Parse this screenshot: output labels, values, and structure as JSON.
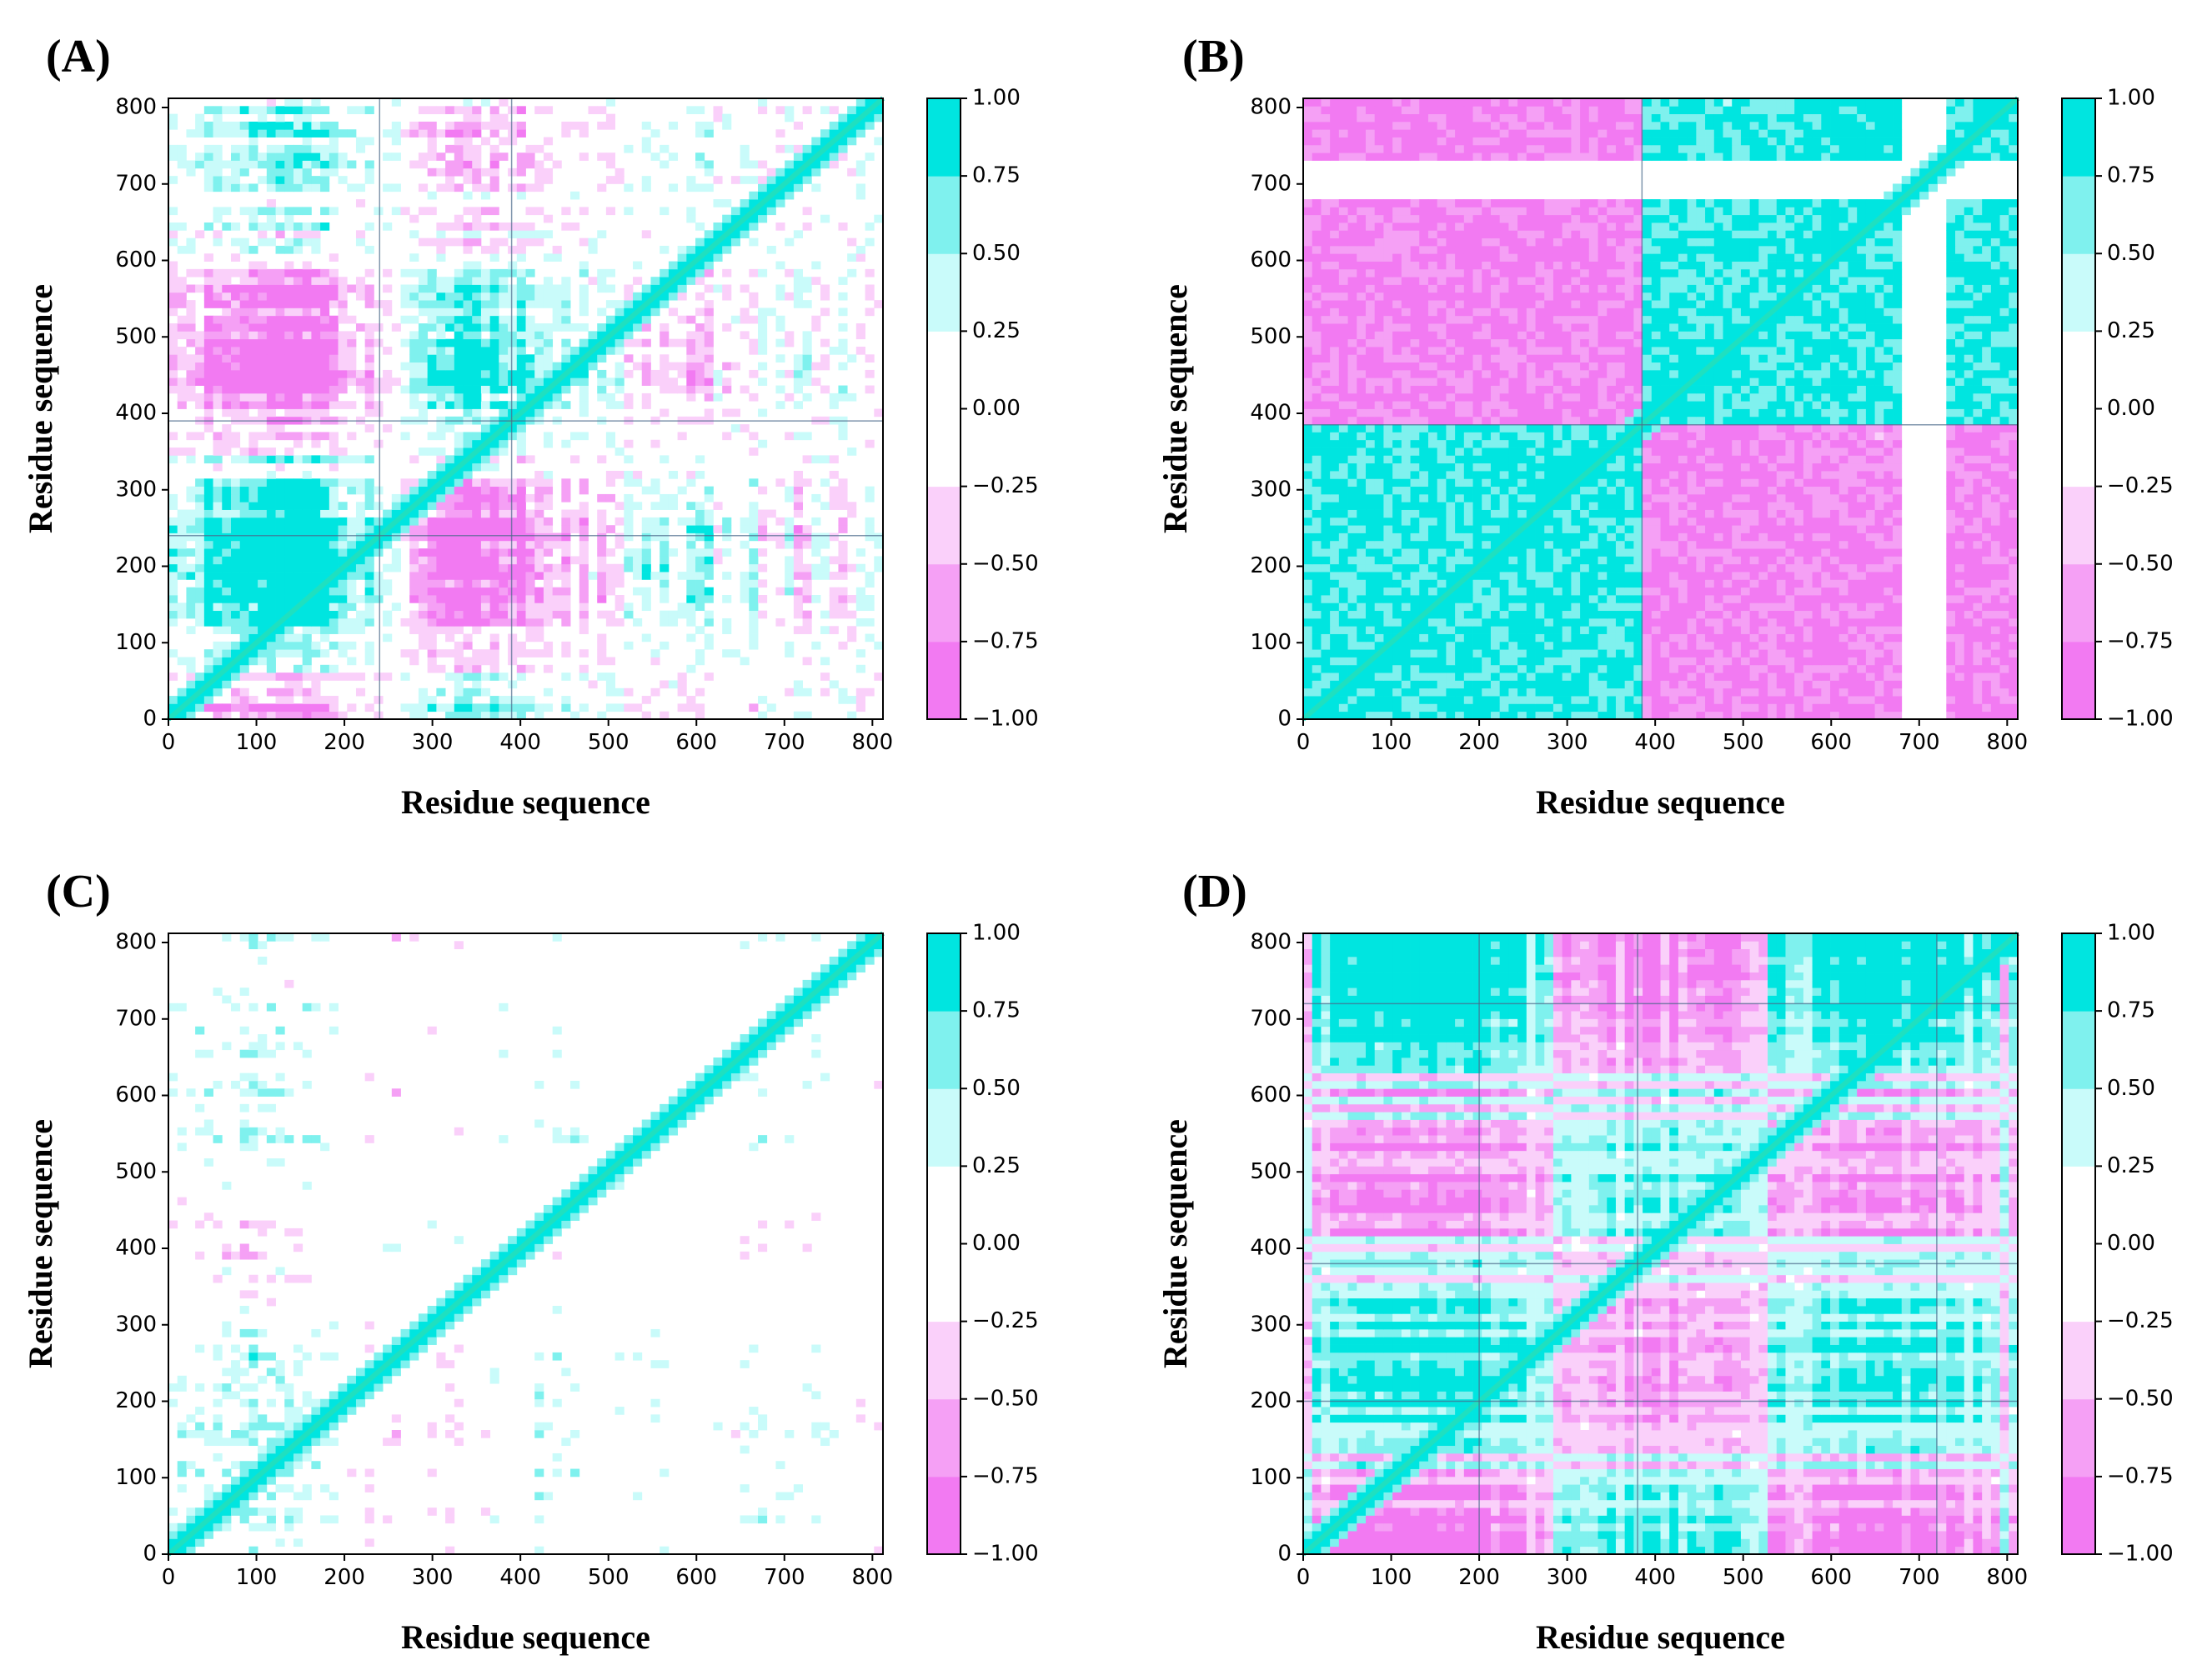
{
  "figure": {
    "colors": {
      "cyan_full": "#00e5e0",
      "magenta_full": "#f07af0",
      "diagonal": "#1fe0c0",
      "contour_line": "#4a6a8a"
    }
  },
  "colorbar": {
    "levels": [
      -1.0,
      -0.75,
      -0.5,
      -0.25,
      0.0,
      0.25,
      0.5,
      0.75,
      1.0
    ],
    "tick_labels": [
      "−1.00",
      "−0.75",
      "−0.50",
      "−0.25",
      "0.00",
      "0.25",
      "0.50",
      "0.75",
      "1.00"
    ],
    "band_colors": [
      "#f27af2",
      "#f5a0f5",
      "#fad0fa",
      "#ffffff",
      "#ffffff",
      "#c9fbfa",
      "#7ff1ee",
      "#00e5e0"
    ]
  },
  "chart_data": [
    {
      "type": "heatmap",
      "panel_label": "(A)",
      "title": "",
      "xlabel": "Residue sequence",
      "ylabel": "Residue sequence",
      "xlim": [
        0,
        812
      ],
      "ylim": [
        0,
        812
      ],
      "xticks": [
        0,
        100,
        200,
        300,
        400,
        500,
        600,
        700,
        800
      ],
      "yticks": [
        0,
        100,
        200,
        300,
        400,
        500,
        600,
        700,
        800
      ],
      "xtick_labels": [
        "0",
        "100",
        "200",
        "300",
        "400",
        "500",
        "600",
        "700",
        "800"
      ],
      "ytick_labels": [
        "0",
        "100",
        "200",
        "300",
        "400",
        "500",
        "600",
        "700",
        "800"
      ],
      "zlim": [
        -1.0,
        1.0
      ],
      "pattern": "mixed",
      "description_values": {
        "block_boundaries": [
          240,
          390
        ],
        "mean_correlation": 0.05
      }
    },
    {
      "type": "heatmap",
      "panel_label": "(B)",
      "title": "",
      "xlabel": "Residue sequence",
      "ylabel": "Residue sequence",
      "xlim": [
        0,
        812
      ],
      "ylim": [
        0,
        812
      ],
      "xticks": [
        0,
        100,
        200,
        300,
        400,
        500,
        600,
        700,
        800
      ],
      "yticks": [
        0,
        100,
        200,
        300,
        400,
        500,
        600,
        700,
        800
      ],
      "xtick_labels": [
        "0",
        "100",
        "200",
        "300",
        "400",
        "500",
        "600",
        "700",
        "800"
      ],
      "ytick_labels": [
        "0",
        "100",
        "200",
        "300",
        "400",
        "500",
        "600",
        "700",
        "800"
      ],
      "zlim": [
        -1.0,
        1.0
      ],
      "pattern": "block",
      "description_values": {
        "block_boundaries": [
          385
        ],
        "mean_correlation": 0.0
      }
    },
    {
      "type": "heatmap",
      "panel_label": "(C)",
      "title": "",
      "xlabel": "Residue sequence",
      "ylabel": "Residue sequence",
      "xlim": [
        0,
        812
      ],
      "ylim": [
        0,
        812
      ],
      "xticks": [
        0,
        100,
        200,
        300,
        400,
        500,
        600,
        700,
        800
      ],
      "yticks": [
        0,
        100,
        200,
        300,
        400,
        500,
        600,
        700,
        800
      ],
      "xtick_labels": [
        "0",
        "100",
        "200",
        "300",
        "400",
        "500",
        "600",
        "700",
        "800"
      ],
      "ytick_labels": [
        "0",
        "100",
        "200",
        "300",
        "400",
        "500",
        "600",
        "700",
        "800"
      ],
      "zlim": [
        -1.0,
        1.0
      ],
      "pattern": "sparse",
      "description_values": {
        "block_boundaries": [],
        "mean_correlation": 0.02
      }
    },
    {
      "type": "heatmap",
      "panel_label": "(D)",
      "title": "",
      "xlabel": "Residue sequence",
      "ylabel": "Residue sequence",
      "xlim": [
        0,
        812
      ],
      "ylim": [
        0,
        812
      ],
      "xticks": [
        0,
        100,
        200,
        300,
        400,
        500,
        600,
        700,
        800
      ],
      "yticks": [
        0,
        100,
        200,
        300,
        400,
        500,
        600,
        700,
        800
      ],
      "xtick_labels": [
        "0",
        "100",
        "200",
        "300",
        "400",
        "500",
        "600",
        "700",
        "800"
      ],
      "ytick_labels": [
        "0",
        "100",
        "200",
        "300",
        "400",
        "500",
        "600",
        "700",
        "800"
      ],
      "zlim": [
        -1.0,
        1.0
      ],
      "pattern": "striped",
      "description_values": {
        "block_boundaries": [
          200,
          380,
          720
        ],
        "mean_correlation": 0.05
      }
    }
  ]
}
